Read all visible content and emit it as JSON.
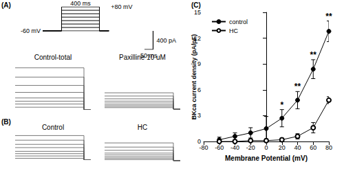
{
  "figure": {
    "panel_labels": [
      "(A)",
      "(B)"
    ],
    "protocol": {
      "holding_mv": -60,
      "steps_mv": [
        -60,
        -40,
        -20,
        0,
        20,
        40,
        60,
        80
      ],
      "step_start_ms": 0,
      "step_ms": 400,
      "xlim": [
        -200,
        500
      ],
      "ylim": [
        -60,
        80
      ],
      "color": "#000000",
      "labels": {
        "duration": "400 ms",
        "top": "+80 mV",
        "holding": "-60 mV"
      }
    },
    "scale_bar": {
      "current_pa": 400,
      "time_ms": 50,
      "current_label": "400 pA",
      "time_label": "50 ms",
      "color": "#000000"
    },
    "trace_baseline_pa": 0,
    "traces": [
      {
        "title": "Control-total",
        "xlim": [
          0,
          440
        ],
        "ylim": [
          -100,
          1000
        ],
        "color": "#555555",
        "levels_pa": [
          50,
          120,
          180,
          250,
          370,
          520,
          700,
          900
        ]
      },
      {
        "title": "Paxilline 10 uM",
        "xlim": [
          0,
          440
        ],
        "ylim": [
          -100,
          500
        ],
        "color": "#555555",
        "levels_pa": [
          30,
          60,
          90,
          130,
          170,
          220,
          280,
          350
        ]
      },
      {
        "title": "Control",
        "xlim": [
          0,
          440
        ],
        "ylim": [
          -100,
          600
        ],
        "color": "#555555",
        "levels_pa": [
          30,
          80,
          130,
          180,
          260,
          330,
          420,
          520
        ]
      },
      {
        "title": "HC",
        "xlim": [
          0,
          440
        ],
        "ylim": [
          -100,
          500
        ],
        "color": "#555555",
        "levels_pa": [
          20,
          50,
          80,
          120,
          160,
          220,
          290,
          380
        ]
      }
    ]
  },
  "chart_data": {
    "type": "line",
    "title": "(C)",
    "xlabel": "Membrane Potential (mV)",
    "ylabel": "BKca current density (pA/pF)",
    "x": [
      -60,
      -40,
      -20,
      0,
      20,
      40,
      60,
      80
    ],
    "series": [
      {
        "name": "control",
        "color": "#000000",
        "marker": "filled_circle",
        "values": [
          0.2,
          0.6,
          1.0,
          1.5,
          2.7,
          4.8,
          8.4,
          12.8
        ],
        "errors": [
          0.3,
          0.4,
          0.6,
          1.4,
          1.0,
          1.0,
          1.1,
          1.2
        ]
      },
      {
        "name": "HC",
        "color": "#000000",
        "marker": "open_circle",
        "values": [
          0.0,
          0.0,
          0.1,
          0.1,
          0.2,
          0.6,
          1.6,
          4.8
        ],
        "errors": [
          0.1,
          0.1,
          0.1,
          0.2,
          0.2,
          0.3,
          0.6,
          0.4
        ]
      }
    ],
    "annotations": [
      {
        "x": 20,
        "text": "*"
      },
      {
        "x": 40,
        "text": "**"
      },
      {
        "x": 60,
        "text": "**"
      },
      {
        "x": 80,
        "text": "**"
      }
    ],
    "xlim": [
      -80,
      80
    ],
    "xticks": [
      -80,
      -60,
      -40,
      -20,
      0,
      20,
      40,
      60,
      80
    ],
    "ylim": [
      0,
      15
    ],
    "yticks": [
      0,
      3,
      6,
      9,
      12,
      15
    ],
    "grid": false,
    "legend": "upper left"
  }
}
